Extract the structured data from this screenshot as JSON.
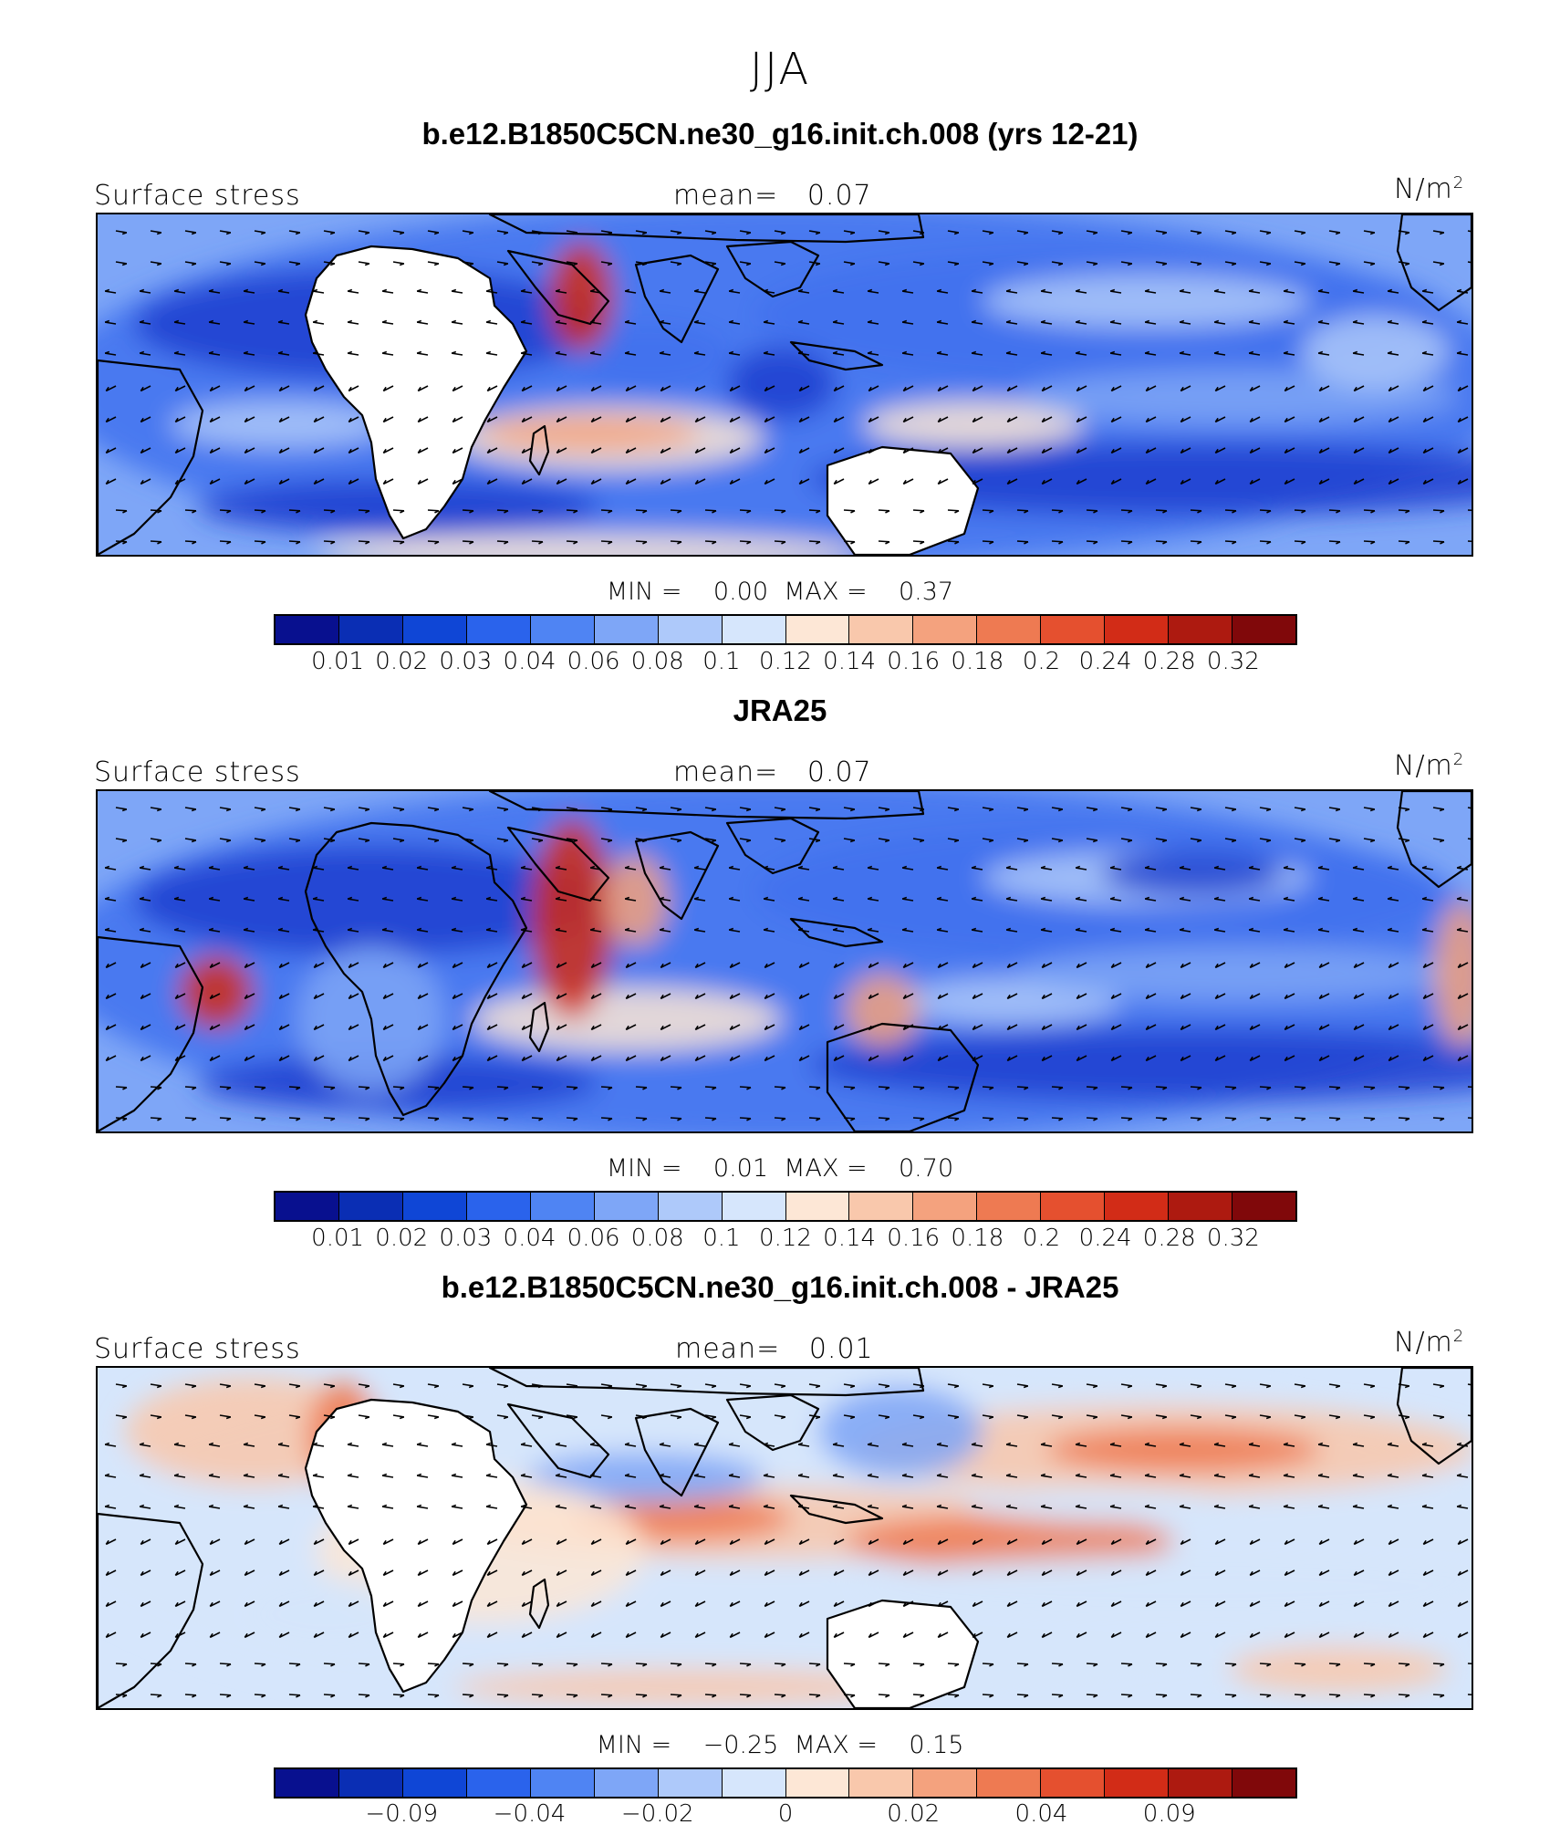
{
  "figure": {
    "title": "JJA"
  },
  "colorbar_colors": [
    "#08108f",
    "#0a2eb4",
    "#0f46d6",
    "#2a63ec",
    "#4f84f3",
    "#7ea6f7",
    "#aec9fa",
    "#d6e6fc",
    "#fde7d6",
    "#f9c8ac",
    "#f4a27e",
    "#ee7a52",
    "#e5502f",
    "#d22c17",
    "#ad1a10",
    "#80080a"
  ],
  "panels": [
    {
      "title": "b.e12.B1850C5CN.ne30_g16.init.ch.008 (yrs 12-21)",
      "variable": "Surface stress",
      "mean_label": "mean=",
      "mean_value": "0.07",
      "units": "N/m",
      "units_exp": "2",
      "min_label": "MIN =",
      "min_value": "0.00",
      "max_label": "MAX =",
      "max_value": "0.37",
      "colorbar_ticks": [
        "0.01",
        "0.02",
        "0.03",
        "0.04",
        "0.06",
        "0.08",
        "0.1",
        "0.12",
        "0.14",
        "0.16",
        "0.18",
        "0.2",
        "0.24",
        "0.28",
        "0.32"
      ],
      "field_style": "model"
    },
    {
      "title": "JRA25",
      "variable": "Surface stress",
      "mean_label": "mean=",
      "mean_value": "0.07",
      "units": "N/m",
      "units_exp": "2",
      "min_label": "MIN =",
      "min_value": "0.01",
      "max_label": "MAX =",
      "max_value": "0.70",
      "colorbar_ticks": [
        "0.01",
        "0.02",
        "0.03",
        "0.04",
        "0.06",
        "0.08",
        "0.1",
        "0.12",
        "0.14",
        "0.16",
        "0.18",
        "0.2",
        "0.24",
        "0.28",
        "0.32"
      ],
      "field_style": "obs"
    },
    {
      "title": "b.e12.B1850C5CN.ne30_g16.init.ch.008 - JRA25",
      "variable": "Surface stress",
      "mean_label": "mean=",
      "mean_value": "0.01",
      "units": "N/m",
      "units_exp": "2",
      "min_label": "MIN =",
      "min_value": "−0.25",
      "max_label": "MAX =",
      "max_value": "0.15",
      "colorbar_ticks": [
        "−0.09",
        "−0.04",
        "−0.02",
        "0",
        "0.02",
        "0.04",
        "0.09"
      ],
      "field_style": "diff"
    }
  ]
}
